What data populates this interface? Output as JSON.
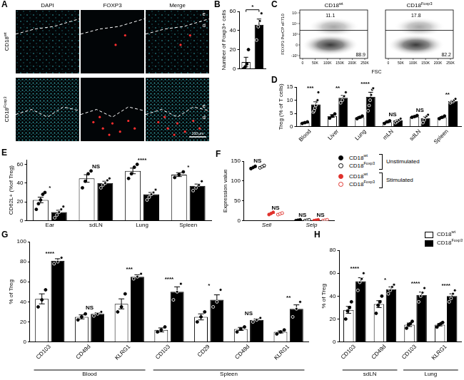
{
  "chart_data": [
    {
      "panel": "B",
      "type": "bar",
      "y_label": "Number of Foxp3+ cells",
      "categories": [
        null,
        null
      ],
      "ylim": [
        0,
        60
      ],
      "yticks": [
        0,
        20,
        40,
        60
      ],
      "grid": false,
      "annotation": "*",
      "series": [
        {
          "color": "#ffffff",
          "marker": "filled",
          "values": [
            7,
            null
          ],
          "errors": [
            5,
            null
          ],
          "points": [
            [
              0,
              2,
              5,
              20
            ],
            null
          ]
        },
        {
          "color": "#000000",
          "marker": "open",
          "values": [
            null,
            46
          ],
          "errors": [
            null,
            6
          ],
          "points": [
            null,
            [
              30,
              44,
              50,
              58
            ]
          ]
        }
      ]
    },
    {
      "panel": "D",
      "type": "bar",
      "y_label": "Treg (% of T cells)",
      "categories": [
        "Blood",
        "Liver",
        "Lung",
        "mLN",
        "sdLN",
        "Spleen"
      ],
      "ylim": [
        0,
        15
      ],
      "yticks": [
        0,
        5,
        10,
        15
      ],
      "grid": false,
      "annotations": [
        "***",
        "**",
        "****",
        "NS",
        "NS",
        "**"
      ],
      "series": [
        {
          "color": "#ffffff",
          "marker": "filled",
          "values": [
            1.5,
            4,
            3.5,
            1.7,
            3.8,
            3.5
          ],
          "errors": [
            0.2,
            0.5,
            0.3,
            0.3,
            0.2,
            0.3
          ],
          "points": [
            [
              1.2,
              1.5,
              1.8
            ],
            [
              3.2,
              4,
              4.8
            ],
            [
              3,
              3.5,
              4
            ],
            [
              1.2,
              1.8,
              2.2
            ],
            [
              3.5,
              3.8,
              4.2
            ],
            [
              3,
              3.5,
              4
            ]
          ]
        },
        {
          "color": "#000000",
          "marker": "open",
          "values": [
            8.4,
            10.9,
            11.3,
            2.3,
            3.2,
            9.7
          ],
          "errors": [
            1,
            0.9,
            1.7,
            0.3,
            0.5,
            0.3
          ],
          "points": [
            [
              5.5,
              6,
              7,
              8,
              9.5,
              10,
              13
            ],
            [
              9,
              10,
              11.5,
              13
            ],
            [
              6,
              8,
              10,
              12,
              14,
              14.5
            ],
            [
              1.5,
              2,
              2.5,
              3
            ],
            [
              1.5,
              2.5,
              3.5,
              4,
              4.5
            ],
            [
              9,
              9.5,
              9.5,
              10,
              10.5
            ]
          ]
        }
      ]
    },
    {
      "panel": "E",
      "type": "bar",
      "y_label": "CD62L+ (%of Treg)",
      "categories": [
        "Ear",
        "sdLN",
        "Lung",
        "Spleen"
      ],
      "ylim": [
        0,
        65
      ],
      "yticks": [
        0,
        20,
        40,
        60
      ],
      "grid": false,
      "annotations": [
        "*",
        "NS",
        "****",
        "*"
      ],
      "series": [
        {
          "color": "#ffffff",
          "marker": "filled",
          "values": [
            22,
            45,
            53,
            49
          ],
          "errors": [
            3,
            4,
            3,
            2
          ],
          "points": [
            [
              12,
              18,
              22,
              28,
              30
            ],
            [
              35,
              42,
              50,
              53
            ],
            [
              45,
              50,
              57,
              60
            ],
            [
              46,
              49,
              52
            ]
          ]
        },
        {
          "color": "#000000",
          "marker": "open",
          "values": [
            9,
            40,
            28,
            37
          ],
          "errors": [
            2,
            2,
            2,
            2
          ],
          "points": [
            [
              3,
              6,
              9,
              12,
              15
            ],
            [
              35,
              38,
              40,
              43,
              45
            ],
            [
              22,
              25,
              28,
              30,
              33
            ],
            [
              32,
              35,
              38,
              42
            ]
          ]
        }
      ]
    },
    {
      "panel": "F",
      "type": "scatter",
      "y_label": "Expression value",
      "categories": [
        "Sell",
        "Selp"
      ],
      "ylim": [
        0,
        150
      ],
      "yticks": [
        0,
        50,
        100,
        150
      ],
      "grid": false,
      "legend": "right",
      "annotations": [
        [
          "NS",
          "NS"
        ],
        [
          "NS",
          "NS"
        ]
      ],
      "series": [
        {
          "name": "CD18wt",
          "group": "Unstimulated",
          "color": "#000000",
          "marker": "filled",
          "values": [
            134,
            1
          ],
          "points": [
            [
              131,
              134,
              137
            ],
            [
              0,
              1,
              2
            ]
          ]
        },
        {
          "name": "CD18Foxp3",
          "group": "Unstimulated",
          "color": "#000000",
          "marker": "open",
          "values": [
            136,
            1
          ],
          "points": [
            [
              133,
              136,
              139
            ],
            [
              0,
              1,
              2
            ]
          ]
        },
        {
          "name": "CD18wt",
          "group": "Stimulated",
          "color": "#e0312b",
          "marker": "filled",
          "values": [
            18,
            1
          ],
          "points": [
            [
              15,
              18,
              21
            ],
            [
              0,
              1,
              2
            ]
          ]
        },
        {
          "name": "CD18Foxp3",
          "group": "Stimulated",
          "color": "#e0312b",
          "marker": "open",
          "values": [
            17,
            1
          ],
          "points": [
            [
              15,
              17,
              19
            ],
            [
              0,
              1,
              2
            ]
          ]
        }
      ]
    },
    {
      "panel": "G",
      "type": "bar",
      "y_label": "% of Treg",
      "categories": [
        "CD103",
        "CD49d",
        "KLRG1",
        "CD103",
        "CD29",
        "CD49d",
        "KLRG1"
      ],
      "category_groups": [
        "Blood",
        "Blood",
        "Blood",
        "Spleen",
        "Spleen",
        "Spleen",
        "Spleen"
      ],
      "ylim": [
        0,
        100
      ],
      "yticks": [
        0,
        20,
        40,
        60,
        80,
        100
      ],
      "grid": false,
      "annotations": [
        "****",
        "NS",
        "***",
        "****",
        "*",
        "NS",
        "**"
      ],
      "series": [
        {
          "color": "#ffffff",
          "marker": "filled",
          "values": [
            43,
            25,
            38,
            12,
            25,
            13,
            10
          ],
          "errors": [
            5,
            2,
            5,
            2,
            3,
            1.5,
            1
          ],
          "points": [
            [
              35,
              42,
              52
            ],
            [
              22,
              25,
              28
            ],
            [
              30,
              35,
              48
            ],
            [
              10,
              12,
              15
            ],
            [
              20,
              25,
              30
            ],
            [
              10,
              13,
              15
            ],
            [
              8,
              10,
              12
            ]
          ]
        },
        {
          "color": "#000000",
          "marker": "open",
          "values": [
            81,
            28,
            65,
            50,
            42,
            22,
            33
          ],
          "errors": [
            2,
            1,
            2,
            5,
            5,
            1,
            4
          ],
          "points": [
            [
              78,
              80,
              84
            ],
            [
              26,
              28,
              30
            ],
            [
              63,
              65,
              68
            ],
            [
              42,
              50,
              58
            ],
            [
              35,
              40,
              52
            ],
            [
              20,
              22,
              24
            ],
            [
              25,
              33,
              40
            ]
          ]
        }
      ]
    },
    {
      "panel": "H",
      "type": "bar",
      "y_label": "% of Treg",
      "categories": [
        "CD103",
        "CD49d",
        "CD103",
        "KLRG1"
      ],
      "category_groups": [
        "sdLN",
        "sdLN",
        "Lung",
        "Lung"
      ],
      "ylim": [
        0,
        80
      ],
      "yticks": [
        0,
        20,
        40,
        60,
        80
      ],
      "grid": false,
      "legend": "top right",
      "annotations": [
        "****",
        "*",
        "****",
        "****"
      ],
      "series": [
        {
          "name": "CD18wt",
          "color": "#ffffff",
          "marker": "filled",
          "values": [
            28,
            33,
            15,
            15
          ],
          "errors": [
            3,
            3,
            1.5,
            1
          ],
          "points": [
            [
              20,
              27,
              30,
              35
            ],
            [
              25,
              32,
              35,
              40
            ],
            [
              12,
              15,
              16,
              18
            ],
            [
              13,
              15,
              16,
              17
            ]
          ]
        },
        {
          "name": "CD18Foxp3",
          "color": "#000000",
          "marker": "open",
          "values": [
            53,
            46,
            41,
            40
          ],
          "errors": [
            3,
            2,
            2.5,
            2
          ],
          "points": [
            [
              45,
              52,
              55,
              60
            ],
            [
              42,
              45,
              48,
              50
            ],
            [
              35,
              40,
              43,
              47
            ],
            [
              35,
              38,
              42,
              45
            ]
          ]
        }
      ]
    }
  ],
  "image_panels": [
    {
      "panel": "A",
      "columns": [
        "DAPI",
        "FOXP3",
        "Merge"
      ],
      "rows": [
        "CD18wt",
        "CD18Foxp3"
      ],
      "region_labels": [
        "e",
        "d"
      ],
      "scale_bar": "100 µm"
    },
    {
      "panel": "C",
      "plots": [
        {
          "title": "CD18wt",
          "upper": "11.1",
          "lower": "88.9"
        },
        {
          "title": "CD18Foxp3",
          "upper": "17.8",
          "lower": "82.2"
        }
      ],
      "y_label": "FOXP3 PerCP eF710",
      "x_label": "FSC",
      "xticks": [
        "0",
        "50K",
        "100K",
        "150K",
        "200K",
        "250K"
      ],
      "yticks": [
        "-10³",
        "0",
        "10³",
        "10⁴",
        "10⁵"
      ]
    }
  ]
}
